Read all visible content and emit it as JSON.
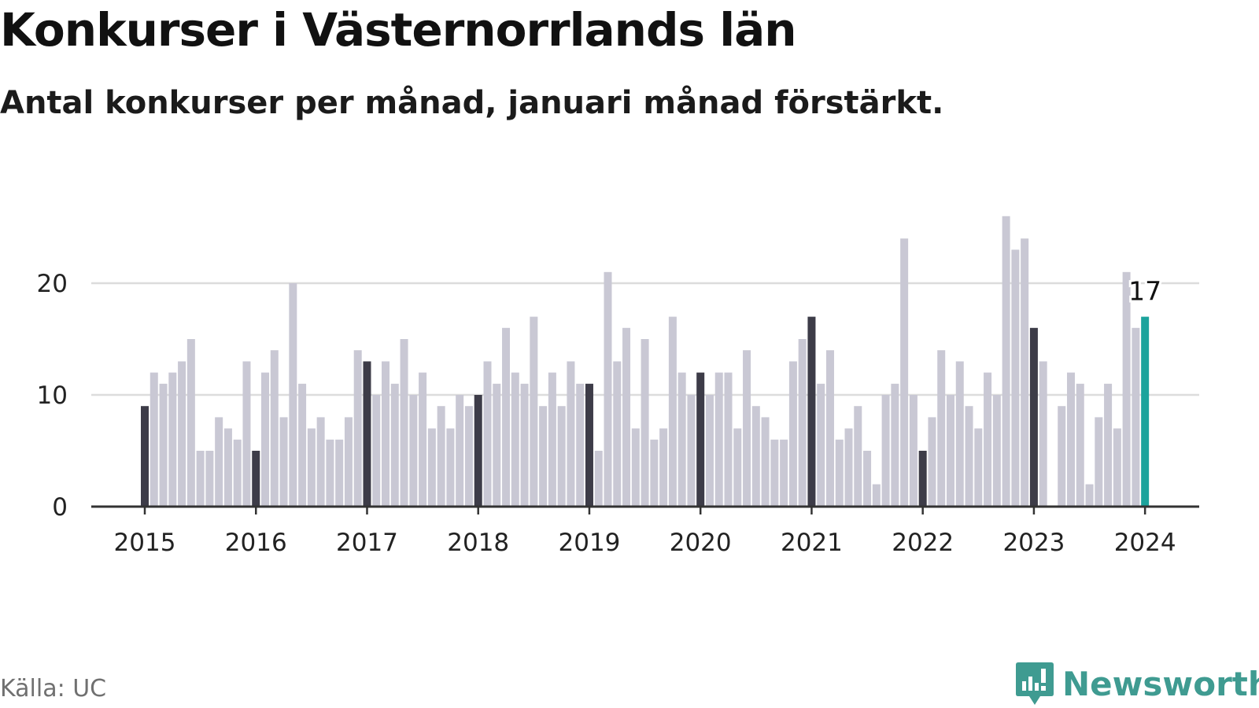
{
  "title": "Konkurser i Västernorrlands län",
  "subtitle": "Antal konkurser per månad, januari månad förstärkt.",
  "source": "Källa: UC",
  "brand": {
    "name": "Newsworthy",
    "icon": "newsworthy-logo-icon",
    "color": "#3f9b91"
  },
  "colors": {
    "bar": "#c9c8d4",
    "january": "#3d3c48",
    "latest": "#1ba39c",
    "grid": "#dcdcdc",
    "axis": "#333333"
  },
  "chart_data": {
    "type": "bar",
    "title": "Konkurser i Västernorrlands län",
    "subtitle": "Antal konkurser per månad, januari månad förstärkt.",
    "xlabel": "",
    "ylabel": "",
    "ylim": [
      0,
      26
    ],
    "yticks": [
      0,
      10,
      20
    ],
    "grid": true,
    "legend": "none",
    "start": "2015-01",
    "x_tick_labels": [
      "2015",
      "2016",
      "2017",
      "2018",
      "2019",
      "2020",
      "2021",
      "2022",
      "2023",
      "2024"
    ],
    "highlight": "january",
    "annotation": {
      "month": "2024-01",
      "value": 17,
      "text": "17"
    },
    "years": [
      {
        "year": "2015",
        "values": [
          9,
          12,
          11,
          12,
          13,
          15,
          5,
          5,
          8,
          7,
          6,
          13
        ]
      },
      {
        "year": "2016",
        "values": [
          5,
          12,
          14,
          8,
          20,
          11,
          7,
          8,
          6,
          6,
          8,
          14
        ]
      },
      {
        "year": "2017",
        "values": [
          13,
          10,
          13,
          11,
          15,
          10,
          12,
          7,
          9,
          7,
          10,
          9
        ]
      },
      {
        "year": "2018",
        "values": [
          10,
          13,
          11,
          16,
          12,
          11,
          17,
          9,
          12,
          9,
          13,
          11
        ]
      },
      {
        "year": "2019",
        "values": [
          11,
          5,
          21,
          13,
          16,
          7,
          15,
          6,
          7,
          17,
          12,
          10
        ]
      },
      {
        "year": "2020",
        "values": [
          12,
          10,
          12,
          12,
          7,
          14,
          9,
          8,
          6,
          6,
          13,
          15
        ]
      },
      {
        "year": "2021",
        "values": [
          17,
          11,
          14,
          6,
          7,
          9,
          5,
          2,
          10,
          11,
          24,
          10
        ]
      },
      {
        "year": "2022",
        "values": [
          5,
          8,
          14,
          10,
          13,
          9,
          7,
          12,
          10,
          26,
          23,
          24
        ]
      },
      {
        "year": "2023",
        "values": [
          16,
          13,
          0,
          9,
          12,
          11,
          2,
          8,
          11,
          7,
          21,
          16
        ]
      },
      {
        "year": "2024",
        "values": [
          17
        ]
      }
    ]
  }
}
